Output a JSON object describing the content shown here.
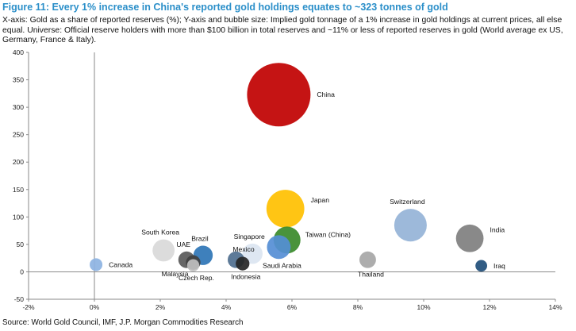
{
  "figure": {
    "title": "Figure 11: Every 1% increase in China's reported gold holdings equates to ~323 tonnes of gold",
    "subtitle": "X-axis: Gold as a share of reported reserves (%); Y-axis and bubble size: Implied gold tonnage of a 1% increase in gold holdings at current prices, all else equal. Universe: Official reserve holders with more than $100 billion in total reserves and ~11% or less of reported reserves in gold (World average ex US, Germany, France & Italy).",
    "source": "Source: World Gold Council, IMF, J.P. Morgan Commodities Research"
  },
  "chart_data": {
    "type": "scatter",
    "title": "",
    "xlabel": "",
    "ylabel": "",
    "xlim": [
      -2,
      14
    ],
    "ylim": [
      -50,
      400
    ],
    "x_ticks": [
      -2,
      0,
      2,
      4,
      6,
      8,
      10,
      12,
      14
    ],
    "x_tick_labels": [
      "-2%",
      "0%",
      "2%",
      "4%",
      "6%",
      "8%",
      "10%",
      "12%",
      "14%"
    ],
    "y_ticks": [
      -50,
      0,
      50,
      100,
      150,
      200,
      250,
      300,
      350,
      400
    ],
    "y_tick_labels": [
      "-50",
      "0",
      "50",
      "100",
      "150",
      "200",
      "250",
      "300",
      "350",
      "400"
    ],
    "grid": false,
    "legend": "none",
    "bubble_size_encodes": "y",
    "points": [
      {
        "label": "China",
        "x": 5.6,
        "y": 323,
        "color": "#c00000",
        "label_pos": "right"
      },
      {
        "label": "Japan",
        "x": 5.8,
        "y": 115,
        "color": "#ffc000",
        "label_pos": "right-up"
      },
      {
        "label": "Switzerland",
        "x": 9.6,
        "y": 85,
        "color": "#95b3d7",
        "label_pos": "above"
      },
      {
        "label": "India",
        "x": 11.4,
        "y": 61,
        "color": "#7f7f7f",
        "label_pos": "right-up"
      },
      {
        "label": "Taiwan (China)",
        "x": 5.85,
        "y": 58,
        "color": "#3a8a2a",
        "label_pos": "right-down"
      },
      {
        "label": "Saudi Arabia",
        "x": 5.6,
        "y": 45,
        "color": "#558ed5",
        "label_pos": "below"
      },
      {
        "label": "South Korea",
        "x": 2.1,
        "y": 39,
        "color": "#d9d9d9",
        "label_pos": "above"
      },
      {
        "label": "Singapore",
        "x": 4.8,
        "y": 33,
        "color": "#dbe5f1",
        "label_pos": "above"
      },
      {
        "label": "Brazil",
        "x": 3.3,
        "y": 30,
        "color": "#2e75b6",
        "label_pos": "above"
      },
      {
        "label": "Mexico",
        "x": 4.3,
        "y": 22,
        "color": "#4f6f8f",
        "label_pos": "left-up"
      },
      {
        "label": "UAE",
        "x": 2.8,
        "y": 22,
        "color": "#595959",
        "label_pos": "above"
      },
      {
        "label": "Thailand",
        "x": 8.3,
        "y": 22,
        "color": "#a6a6a6",
        "label_pos": "below"
      },
      {
        "label": "Malaysia",
        "x": 3.0,
        "y": 17,
        "color": "#404040",
        "label_pos": "below-left"
      },
      {
        "label": "Indonesia",
        "x": 4.5,
        "y": 15,
        "color": "#262626",
        "label_pos": "below"
      },
      {
        "label": "Czech Rep.",
        "x": 3.0,
        "y": 12,
        "color": "#c0c0c0",
        "label_pos": "below"
      },
      {
        "label": "Canada",
        "x": 0.05,
        "y": 13,
        "color": "#8db3e2",
        "label_pos": "right"
      },
      {
        "label": "Iraq",
        "x": 11.75,
        "y": 11,
        "color": "#1f4e79",
        "label_pos": "right"
      }
    ]
  }
}
